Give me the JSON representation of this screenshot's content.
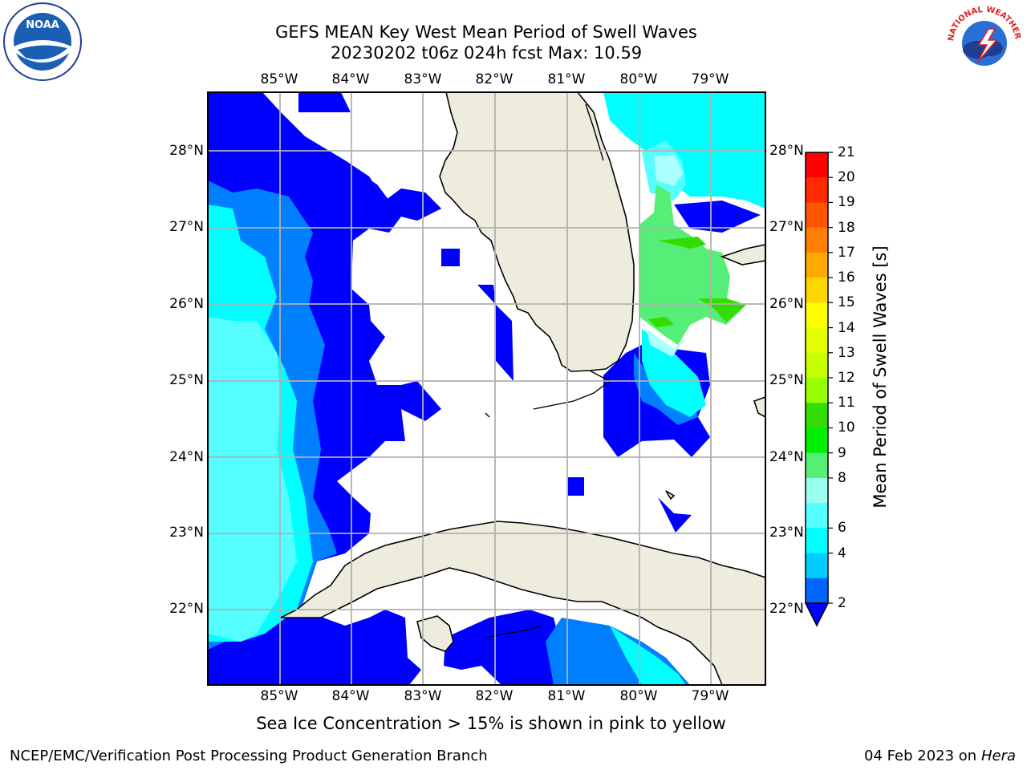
{
  "title": {
    "line1": "GEFS MEAN Key West Mean Period of Swell Waves",
    "line2": "20230202 t06z 024h fcst   Max: 10.59"
  },
  "axes": {
    "lon_labels": [
      "85°W",
      "84°W",
      "83°W",
      "82°W",
      "81°W",
      "80°W",
      "79°W"
    ],
    "lat_labels": [
      "28°N",
      "27°N",
      "26°N",
      "25°N",
      "24°N",
      "23°N",
      "22°N"
    ]
  },
  "colorbar": {
    "label": "Mean Period of Swell Waves [s]",
    "ticks": [
      "21",
      "20",
      "19",
      "18",
      "17",
      "16",
      "15",
      "14",
      "13",
      "12",
      "11",
      "10",
      "9",
      "8",
      "6",
      "4",
      "2"
    ],
    "colors": [
      "#ff0000",
      "#ff2a00",
      "#ff5500",
      "#ff8000",
      "#ffaa00",
      "#ffd500",
      "#ffff00",
      "#e5ff00",
      "#c7ff00",
      "#99ff00",
      "#33dd00",
      "#00ee00",
      "#55ee77",
      "#99ffee",
      "#55ffff",
      "#00ffff",
      "#00ccff",
      "#0066ff"
    ],
    "under_color": "#0000ff"
  },
  "map_colors": {
    "land": "#eeecdc",
    "period_2": "#0000ff",
    "period_4": "#007fff",
    "period_6": "#00ffff",
    "period_7": "#55ffff",
    "period_8": "#aaffff",
    "period_9": "#55ee77",
    "period_10": "#33dd00",
    "grid": "#b0b0b0"
  },
  "note": "Sea Ice Concentration > 15% is shown in pink to yellow",
  "footer": {
    "left": "NCEP/EMC/Verification Post Processing Product Generation Branch",
    "date": "04 Feb 2023 on",
    "machine": "Hera"
  },
  "logos": {
    "noaa_text": "NOAA",
    "nws_text": "NATIONAL WEATHER SERVICE"
  }
}
